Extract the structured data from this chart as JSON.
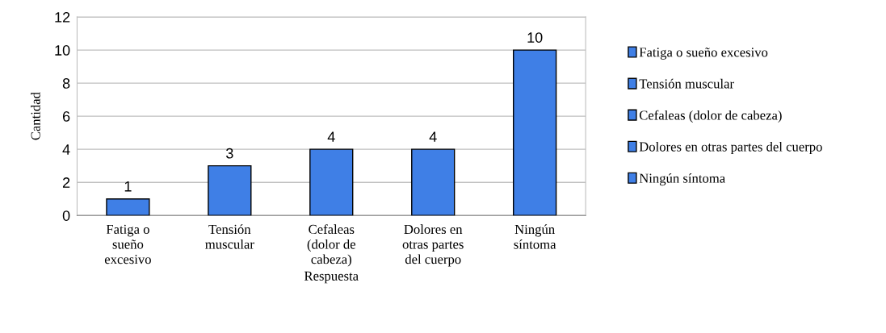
{
  "chart_data": {
    "type": "bar",
    "stacked": true,
    "xlabel": "Respuesta",
    "ylabel": "Cantidad",
    "categories": [
      "Fatiga o sueño excesivo",
      "Tensión muscular",
      "Cefaleas (dolor de cabeza)",
      "Dolores en otras partes del cuerpo",
      "Ningún síntoma"
    ],
    "series": [
      {
        "name": "Fatiga o sueño excesivo",
        "color": "#3f7fe6",
        "values": [
          1,
          null,
          null,
          null,
          null
        ]
      },
      {
        "name": "Tensión muscular",
        "color": "#3f7fe6",
        "values": [
          null,
          3,
          null,
          null,
          null
        ]
      },
      {
        "name": "Cefaleas (dolor de cabeza)",
        "color": "#3f7fe6",
        "values": [
          null,
          null,
          4,
          null,
          null
        ]
      },
      {
        "name": "Dolores en otras partes del cuerpo",
        "color": "#3f7fe6",
        "values": [
          null,
          null,
          null,
          4,
          null
        ]
      },
      {
        "name": "Ningún síntoma",
        "color": "#3f7fe6",
        "values": [
          null,
          null,
          null,
          null,
          10
        ]
      }
    ],
    "ylim": [
      0,
      12
    ],
    "yticks": [
      0,
      2,
      4,
      6,
      8,
      10,
      12
    ],
    "grid": "y",
    "data_labels": true,
    "legend": "right"
  }
}
